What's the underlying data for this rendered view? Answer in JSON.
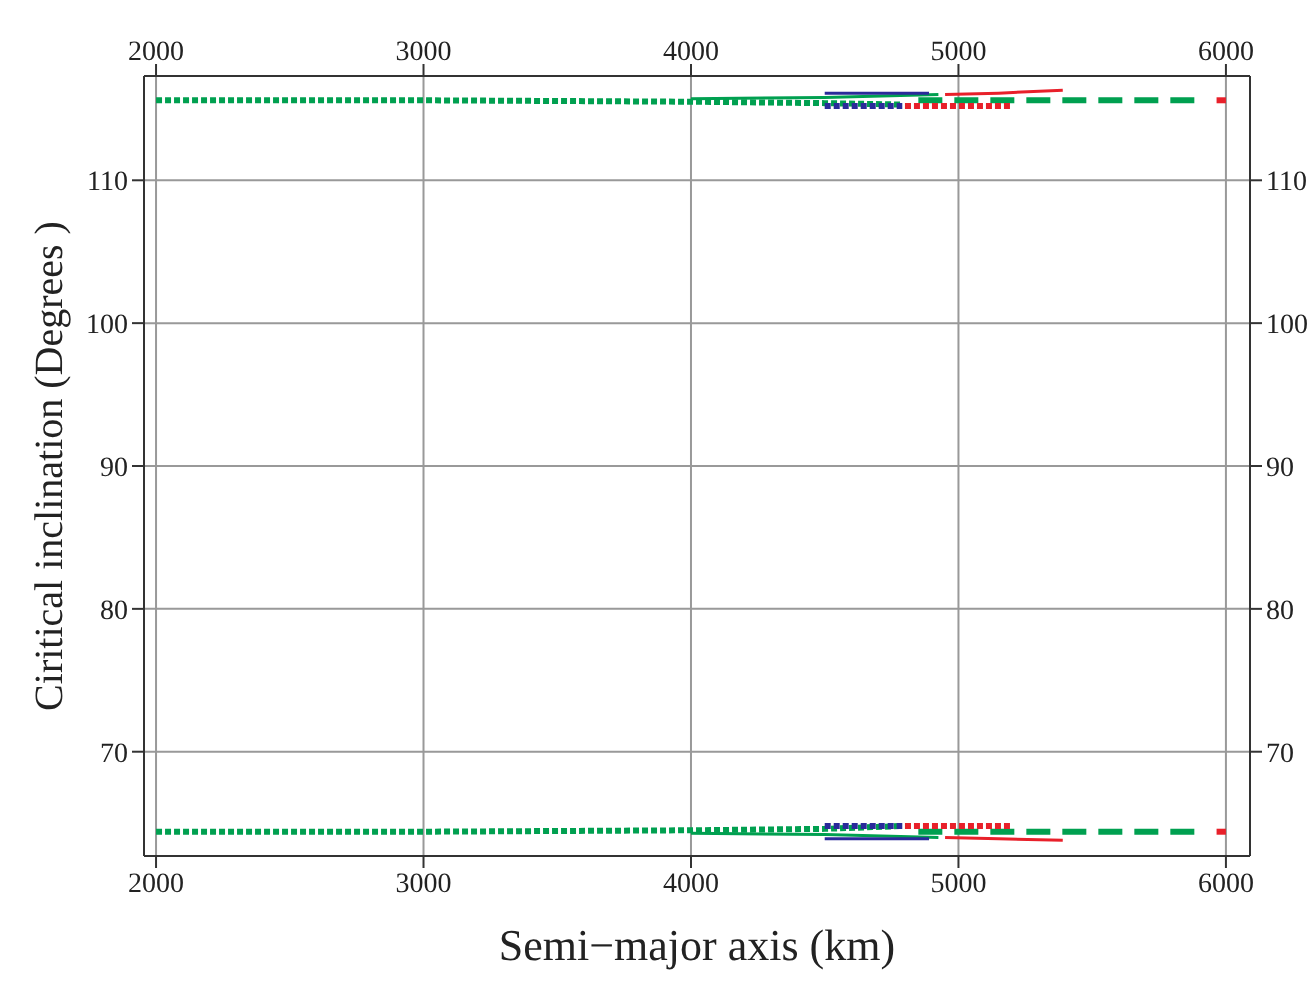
{
  "chart_data": {
    "type": "line",
    "xlabel": "Semi−major axis (km)",
    "ylabel": "Ciritical inclination (Degrees )",
    "xlim": [
      1955,
      6090
    ],
    "xticks": [
      2000,
      3000,
      4000,
      5000,
      6000
    ],
    "x2lim": [
      1955,
      6090
    ],
    "x2ticks": [
      2000,
      3000,
      4000,
      5000,
      6000
    ],
    "ylim": [
      62.7,
      117.3
    ],
    "yticks": [
      70,
      80,
      90,
      100,
      110
    ],
    "y2lim": [
      62.7,
      117.3
    ],
    "y2ticks": [
      70,
      80,
      90,
      100,
      110
    ],
    "grid": true,
    "legend": false,
    "marker": "none",
    "series": [
      {
        "color": "#00a050",
        "line_style": "dotted",
        "x": [
          2000,
          3000,
          4000,
          4500,
          4790
        ],
        "values": [
          115.6,
          115.6,
          115.5,
          115.4,
          115.3
        ]
      },
      {
        "color": "#00a050",
        "line_style": "dotted",
        "x": [
          2000,
          3000,
          4000,
          4500,
          4790
        ],
        "values": [
          64.4,
          64.4,
          64.5,
          64.6,
          64.8
        ]
      },
      {
        "color": "#00a050",
        "line_style": "dashed",
        "x": [
          4850,
          5910
        ],
        "values": [
          115.6,
          115.6
        ]
      },
      {
        "color": "#00a050",
        "line_style": "dashed",
        "x": [
          4850,
          5910
        ],
        "values": [
          64.4,
          64.4
        ]
      },
      {
        "color": "#e8202a",
        "line_style": "dashed",
        "x": [
          5965,
          6000
        ],
        "values": [
          115.6,
          115.6
        ]
      },
      {
        "color": "#e8202a",
        "line_style": "dashed",
        "x": [
          5965,
          6000
        ],
        "values": [
          64.4,
          64.4
        ]
      },
      {
        "color": "#e8202a",
        "line_style": "dotted",
        "x": [
          4800,
          5000,
          5200
        ],
        "values": [
          115.2,
          115.2,
          115.2
        ]
      },
      {
        "color": "#e8202a",
        "line_style": "dotted",
        "x": [
          4800,
          5000,
          5200
        ],
        "values": [
          64.8,
          64.8,
          64.8
        ]
      },
      {
        "color": "#2a2a9a",
        "line_style": "dotted",
        "x": [
          4500,
          4790
        ],
        "values": [
          115.2,
          115.2
        ]
      },
      {
        "color": "#2a2a9a",
        "line_style": "dotted",
        "x": [
          4500,
          4790
        ],
        "values": [
          64.8,
          64.8
        ]
      },
      {
        "color": "#e8202a",
        "line_style": "solid",
        "x": [
          4950,
          5150,
          5390
        ],
        "values": [
          116.0,
          116.1,
          116.3
        ]
      },
      {
        "color": "#e8202a",
        "line_style": "solid",
        "x": [
          4950,
          5150,
          5390
        ],
        "values": [
          64.0,
          63.9,
          63.8
        ]
      },
      {
        "color": "#00a050",
        "line_style": "solid",
        "x": [
          4000,
          4500,
          4925
        ],
        "values": [
          115.7,
          115.8,
          116.0
        ]
      },
      {
        "color": "#00a050",
        "line_style": "solid",
        "x": [
          4000,
          4500,
          4925
        ],
        "values": [
          64.3,
          64.2,
          64.0
        ]
      },
      {
        "color": "#2a2a9a",
        "line_style": "solid",
        "x": [
          4500,
          4890
        ],
        "values": [
          116.1,
          116.1
        ]
      },
      {
        "color": "#2a2a9a",
        "line_style": "solid",
        "x": [
          4500,
          4890
        ],
        "values": [
          63.9,
          63.9
        ]
      }
    ]
  }
}
